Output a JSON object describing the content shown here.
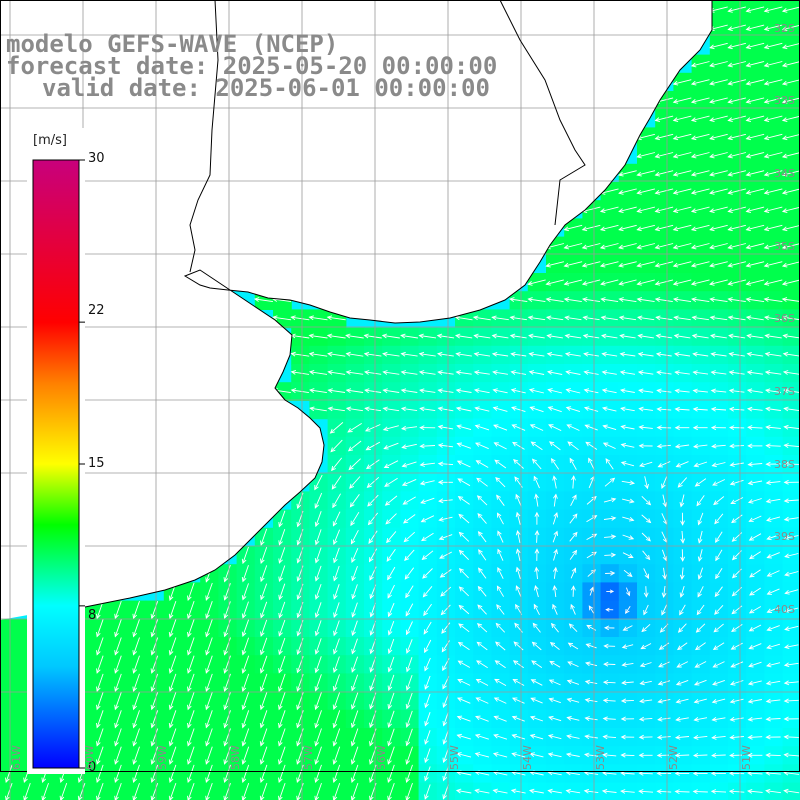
{
  "header": {
    "model": "modelo GEFS-WAVE (NCEP)",
    "forecast": "forecast date: 2025-05-20 00:00:00",
    "valid": "valid date: 2025-06-01 00:00:00"
  },
  "colorbar": {
    "unit": "[m/s]",
    "ticks": [
      "30",
      "22",
      "15",
      "8",
      "0"
    ],
    "tick_values": [
      30,
      22,
      15,
      8,
      0
    ],
    "min": 0,
    "max": 30,
    "colors": [
      "#0000ff",
      "#00c8ff",
      "#00ffff",
      "#00ff00",
      "#ffff00",
      "#ff8000",
      "#ff0000",
      "#c8007c"
    ]
  },
  "map": {
    "lat_labels": [
      "32S",
      "33S",
      "34S",
      "35S",
      "36S",
      "37S",
      "38S",
      "39S",
      "40S"
    ],
    "lon_labels": [
      "61W",
      "60W",
      "59W",
      "58W",
      "57W",
      "56W",
      "55W",
      "54W",
      "53W",
      "52W",
      "51W"
    ],
    "land_color": "#ffffff",
    "grid_color": "#9a9a9a",
    "vector_color": "#ffffff"
  }
}
